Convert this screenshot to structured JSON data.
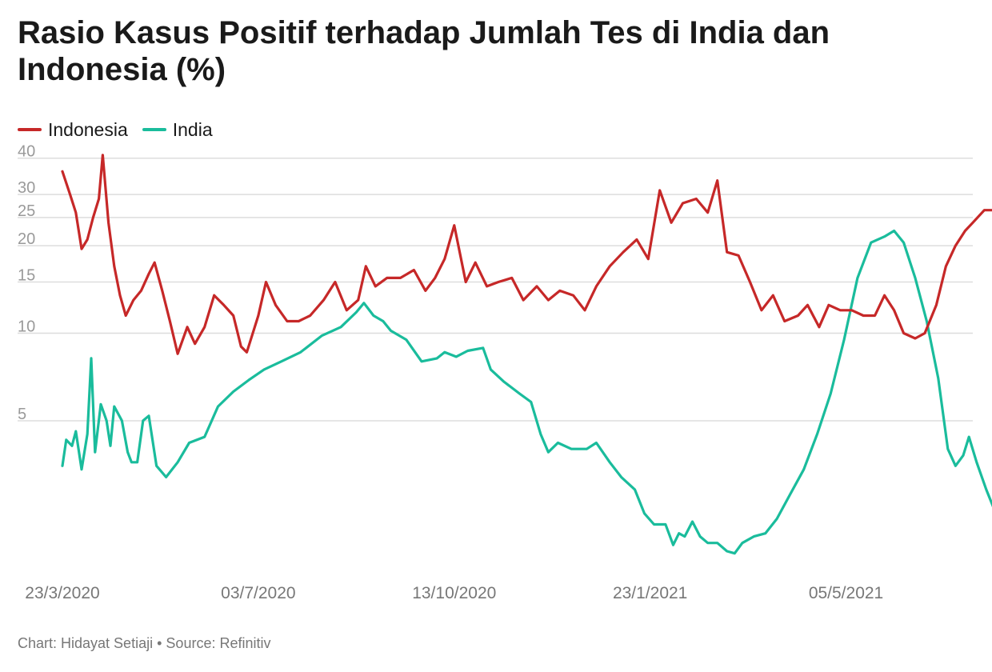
{
  "chart_data": {
    "type": "line",
    "title": "Rasio Kasus Positif terhadap Jumlah Tes di India dan Indonesia (%)",
    "xlabel": "",
    "ylabel": "",
    "y_scale": "log",
    "ylim": [
      1.5,
      42
    ],
    "y_ticks": [
      5,
      10,
      15,
      20,
      25,
      30,
      40
    ],
    "x_range": [
      "2020-03-23",
      "2021-07-10"
    ],
    "x_ticks": [
      "23/3/2020",
      "03/7/2020",
      "13/10/2020",
      "23/1/2021",
      "05/5/2021"
    ],
    "grid": true,
    "legend_position": "top-left",
    "series": [
      {
        "name": "Indonesia",
        "color": "#c62828",
        "points": [
          [
            "2020-03-23",
            36
          ],
          [
            "2020-03-27",
            30
          ],
          [
            "2020-03-30",
            26
          ],
          [
            "2020-04-02",
            19.5
          ],
          [
            "2020-04-05",
            21
          ],
          [
            "2020-04-08",
            25
          ],
          [
            "2020-04-11",
            29
          ],
          [
            "2020-04-13",
            41
          ],
          [
            "2020-04-16",
            24
          ],
          [
            "2020-04-19",
            17
          ],
          [
            "2020-04-22",
            13.5
          ],
          [
            "2020-04-25",
            11.5
          ],
          [
            "2020-04-29",
            13
          ],
          [
            "2020-05-03",
            14
          ],
          [
            "2020-05-07",
            16
          ],
          [
            "2020-05-10",
            17.5
          ],
          [
            "2020-05-14",
            14
          ],
          [
            "2020-05-18",
            11
          ],
          [
            "2020-05-22",
            8.5
          ],
          [
            "2020-05-27",
            10.5
          ],
          [
            "2020-05-31",
            9.2
          ],
          [
            "2020-06-05",
            10.5
          ],
          [
            "2020-06-10",
            13.5
          ],
          [
            "2020-06-15",
            12.5
          ],
          [
            "2020-06-20",
            11.5
          ],
          [
            "2020-06-24",
            9.0
          ],
          [
            "2020-06-27",
            8.6
          ],
          [
            "2020-07-03",
            11.5
          ],
          [
            "2020-07-07",
            15.0
          ],
          [
            "2020-07-12",
            12.5
          ],
          [
            "2020-07-18",
            11.0
          ],
          [
            "2020-07-24",
            11.0
          ],
          [
            "2020-07-30",
            11.5
          ],
          [
            "2020-08-06",
            13.0
          ],
          [
            "2020-08-12",
            15.0
          ],
          [
            "2020-08-18",
            12.0
          ],
          [
            "2020-08-24",
            13.0
          ],
          [
            "2020-08-28",
            17.0
          ],
          [
            "2020-09-02",
            14.5
          ],
          [
            "2020-09-08",
            15.5
          ],
          [
            "2020-09-15",
            15.5
          ],
          [
            "2020-09-22",
            16.5
          ],
          [
            "2020-09-28",
            14.0
          ],
          [
            "2020-10-03",
            15.5
          ],
          [
            "2020-10-08",
            18.0
          ],
          [
            "2020-10-13",
            23.5
          ],
          [
            "2020-10-19",
            15.0
          ],
          [
            "2020-10-24",
            17.5
          ],
          [
            "2020-10-30",
            14.5
          ],
          [
            "2020-11-05",
            15.0
          ],
          [
            "2020-11-12",
            15.5
          ],
          [
            "2020-11-18",
            13.0
          ],
          [
            "2020-11-25",
            14.5
          ],
          [
            "2020-12-01",
            13.0
          ],
          [
            "2020-12-07",
            14.0
          ],
          [
            "2020-12-14",
            13.5
          ],
          [
            "2020-12-20",
            12.0
          ],
          [
            "2020-12-26",
            14.5
          ],
          [
            "2021-01-02",
            17.0
          ],
          [
            "2021-01-09",
            19.0
          ],
          [
            "2021-01-16",
            21.0
          ],
          [
            "2021-01-22",
            18.0
          ],
          [
            "2021-01-28",
            31.0
          ],
          [
            "2021-02-03",
            24.0
          ],
          [
            "2021-02-09",
            28.0
          ],
          [
            "2021-02-16",
            29.0
          ],
          [
            "2021-02-22",
            26.0
          ],
          [
            "2021-02-27",
            33.5
          ],
          [
            "2021-03-04",
            19.0
          ],
          [
            "2021-03-10",
            18.5
          ],
          [
            "2021-03-16",
            15.0
          ],
          [
            "2021-03-22",
            12.0
          ],
          [
            "2021-03-28",
            13.5
          ],
          [
            "2021-04-03",
            11.0
          ],
          [
            "2021-04-10",
            11.5
          ],
          [
            "2021-04-15",
            12.5
          ],
          [
            "2021-04-21",
            10.5
          ],
          [
            "2021-04-26",
            12.5
          ],
          [
            "2021-05-02",
            12.0
          ],
          [
            "2021-05-08",
            12.0
          ],
          [
            "2021-05-14",
            11.5
          ],
          [
            "2021-05-20",
            11.5
          ],
          [
            "2021-05-25",
            13.5
          ],
          [
            "2021-05-30",
            12.0
          ],
          [
            "2021-06-04",
            10.0
          ],
          [
            "2021-06-10",
            9.6
          ],
          [
            "2021-06-15",
            10.0
          ],
          [
            "2021-06-21",
            12.5
          ],
          [
            "2021-06-26",
            17.0
          ],
          [
            "2021-07-01",
            20.0
          ],
          [
            "2021-07-06",
            22.5
          ],
          [
            "2021-07-10",
            24.0
          ],
          [
            "2021-07-16",
            26.5
          ],
          [
            "2021-07-20",
            26.5
          ]
        ]
      },
      {
        "name": "India",
        "color": "#1abc9c",
        "points": [
          [
            "2020-03-23",
            3.5
          ],
          [
            "2020-03-25",
            4.3
          ],
          [
            "2020-03-28",
            4.1
          ],
          [
            "2020-03-30",
            4.6
          ],
          [
            "2020-04-02",
            3.4
          ],
          [
            "2020-04-05",
            4.5
          ],
          [
            "2020-04-07",
            8.2
          ],
          [
            "2020-04-09",
            3.9
          ],
          [
            "2020-04-12",
            5.7
          ],
          [
            "2020-04-15",
            5.0
          ],
          [
            "2020-04-17",
            4.1
          ],
          [
            "2020-04-19",
            5.6
          ],
          [
            "2020-04-23",
            5.0
          ],
          [
            "2020-04-26",
            3.9
          ],
          [
            "2020-04-28",
            3.6
          ],
          [
            "2020-05-01",
            3.6
          ],
          [
            "2020-05-04",
            5.0
          ],
          [
            "2020-05-07",
            5.2
          ],
          [
            "2020-05-11",
            3.5
          ],
          [
            "2020-05-16",
            3.2
          ],
          [
            "2020-05-22",
            3.6
          ],
          [
            "2020-05-28",
            4.2
          ],
          [
            "2020-06-05",
            4.4
          ],
          [
            "2020-06-12",
            5.6
          ],
          [
            "2020-06-20",
            6.3
          ],
          [
            "2020-06-28",
            6.9
          ],
          [
            "2020-07-06",
            7.5
          ],
          [
            "2020-07-15",
            8.0
          ],
          [
            "2020-07-25",
            8.6
          ],
          [
            "2020-08-05",
            9.8
          ],
          [
            "2020-08-15",
            10.5
          ],
          [
            "2020-08-23",
            11.8
          ],
          [
            "2020-08-27",
            12.7
          ],
          [
            "2020-09-01",
            11.5
          ],
          [
            "2020-09-06",
            11.0
          ],
          [
            "2020-09-10",
            10.2
          ],
          [
            "2020-09-18",
            9.5
          ],
          [
            "2020-09-26",
            8.0
          ],
          [
            "2020-10-04",
            8.2
          ],
          [
            "2020-10-08",
            8.6
          ],
          [
            "2020-10-14",
            8.3
          ],
          [
            "2020-10-20",
            8.7
          ],
          [
            "2020-10-28",
            8.9
          ],
          [
            "2020-11-01",
            7.5
          ],
          [
            "2020-11-08",
            6.8
          ],
          [
            "2020-11-16",
            6.2
          ],
          [
            "2020-11-22",
            5.8
          ],
          [
            "2020-11-27",
            4.5
          ],
          [
            "2020-12-01",
            3.9
          ],
          [
            "2020-12-06",
            4.2
          ],
          [
            "2020-12-13",
            4.0
          ],
          [
            "2020-12-21",
            4.0
          ],
          [
            "2020-12-26",
            4.2
          ],
          [
            "2021-01-02",
            3.6
          ],
          [
            "2021-01-08",
            3.2
          ],
          [
            "2021-01-15",
            2.9
          ],
          [
            "2021-01-20",
            2.4
          ],
          [
            "2021-01-25",
            2.2
          ],
          [
            "2021-01-31",
            2.2
          ],
          [
            "2021-02-04",
            1.87
          ],
          [
            "2021-02-07",
            2.05
          ],
          [
            "2021-02-10",
            2.0
          ],
          [
            "2021-02-14",
            2.25
          ],
          [
            "2021-02-18",
            2.0
          ],
          [
            "2021-02-22",
            1.9
          ],
          [
            "2021-02-27",
            1.9
          ],
          [
            "2021-03-04",
            1.78
          ],
          [
            "2021-03-08",
            1.75
          ],
          [
            "2021-03-12",
            1.9
          ],
          [
            "2021-03-18",
            2.0
          ],
          [
            "2021-03-24",
            2.05
          ],
          [
            "2021-03-30",
            2.3
          ],
          [
            "2021-04-06",
            2.8
          ],
          [
            "2021-04-13",
            3.4
          ],
          [
            "2021-04-20",
            4.5
          ],
          [
            "2021-04-27",
            6.2
          ],
          [
            "2021-05-04",
            9.5
          ],
          [
            "2021-05-11",
            15.5
          ],
          [
            "2021-05-18",
            20.5
          ],
          [
            "2021-05-25",
            21.5
          ],
          [
            "2021-05-30",
            22.5
          ],
          [
            "2021-06-04",
            20.5
          ],
          [
            "2021-06-10",
            15.5
          ],
          [
            "2021-06-16",
            11.0
          ],
          [
            "2021-06-22",
            7.0
          ],
          [
            "2021-06-27",
            4.0
          ],
          [
            "2021-07-01",
            3.5
          ],
          [
            "2021-07-05",
            3.8
          ],
          [
            "2021-07-08",
            4.4
          ],
          [
            "2021-07-12",
            3.6
          ],
          [
            "2021-07-17",
            2.9
          ],
          [
            "2021-07-22",
            2.4
          ],
          [
            "2021-07-26",
            2.1
          ],
          [
            "2021-07-30",
            2.2
          ],
          [
            "2021-08-02",
            2.2
          ],
          [
            "2021-08-04",
            1.95
          ]
        ]
      }
    ]
  },
  "footer": {
    "credit": "Chart: Hidayat Setiaji",
    "separator": "•",
    "source": "Source: Refinitiv"
  }
}
